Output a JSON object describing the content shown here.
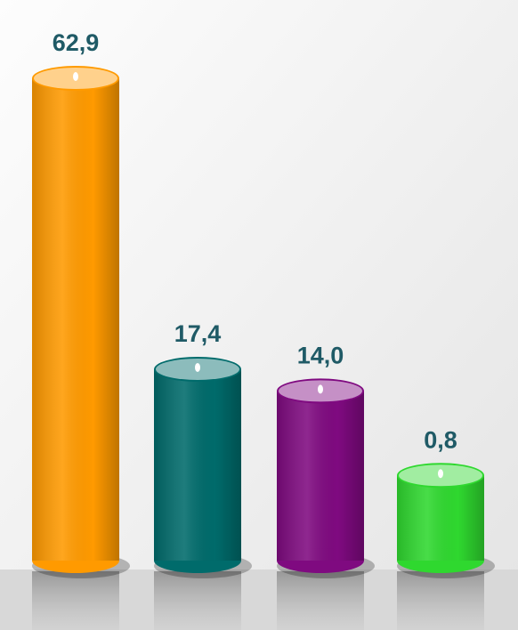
{
  "chart_data": {
    "type": "bar",
    "categories": [
      null,
      null,
      null,
      null
    ],
    "values": [
      62.9,
      17.4,
      14.0,
      0.8
    ],
    "value_labels": [
      "62,9",
      "17,4",
      "14,0",
      "0,8"
    ],
    "colors": [
      "#ff9a00",
      "#006b6b",
      "#7f0a80",
      "#2fd82f"
    ]
  }
}
